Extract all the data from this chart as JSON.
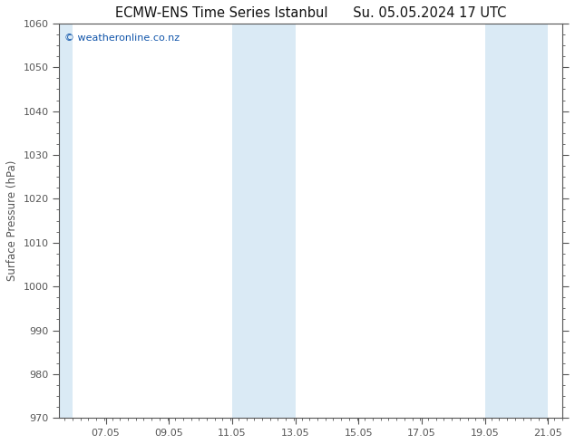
{
  "title_left": "ECMW-ENS Time Series Istanbul",
  "title_right": "Su. 05.05.2024 17 UTC",
  "ylabel": "Surface Pressure (hPa)",
  "xlim_start": 5.583,
  "xlim_end": 21.5,
  "ylim_bottom": 970,
  "ylim_top": 1060,
  "yticks": [
    970,
    980,
    990,
    1000,
    1010,
    1020,
    1030,
    1040,
    1050,
    1060
  ],
  "xtick_labels": [
    "07.05",
    "09.05",
    "11.05",
    "13.05",
    "15.05",
    "17.05",
    "19.05",
    "21.05"
  ],
  "xtick_positions": [
    7.05,
    9.05,
    11.05,
    13.05,
    15.05,
    17.05,
    19.05,
    21.05
  ],
  "shaded_bands": [
    {
      "x_start": 5.583,
      "x_end": 6.0
    },
    {
      "x_start": 11.05,
      "x_end": 13.05
    },
    {
      "x_start": 19.05,
      "x_end": 21.05
    }
  ],
  "band_color": "#daeaf5",
  "plot_bg_color": "#ffffff",
  "fig_bg_color": "#ffffff",
  "watermark_text": "© weatheronline.co.nz",
  "watermark_color": "#1155aa",
  "tick_color": "#555555",
  "border_color": "#555555",
  "title_fontsize": 10.5,
  "label_fontsize": 8.5,
  "tick_fontsize": 8,
  "watermark_fontsize": 8
}
